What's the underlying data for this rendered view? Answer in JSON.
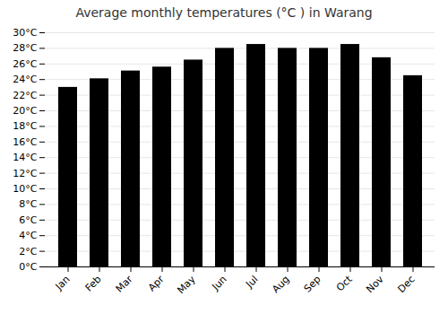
{
  "chart_data": {
    "type": "bar",
    "title": "Average monthly temperatures (°C ) in Warang",
    "categories": [
      "Jan",
      "Feb",
      "Mar",
      "Apr",
      "May",
      "Jun",
      "Jul",
      "Aug",
      "Sep",
      "Oct",
      "Nov",
      "Dec"
    ],
    "values": [
      23.0,
      24.1,
      25.1,
      25.6,
      26.5,
      28.0,
      28.5,
      28.0,
      28.0,
      28.5,
      26.8,
      24.5
    ],
    "ylim": [
      0,
      30
    ],
    "yticks": [
      {
        "value": 0,
        "label": "0°C"
      },
      {
        "value": 2,
        "label": "2°C"
      },
      {
        "value": 4,
        "label": "4°C"
      },
      {
        "value": 6,
        "label": "6°C"
      },
      {
        "value": 8,
        "label": "8°C"
      },
      {
        "value": 10,
        "label": "10°C"
      },
      {
        "value": 12,
        "label": "12°C"
      },
      {
        "value": 14,
        "label": "14°C"
      },
      {
        "value": 16,
        "label": "16°C"
      },
      {
        "value": 18,
        "label": "18°C"
      },
      {
        "value": 20,
        "label": "20°C"
      },
      {
        "value": 22,
        "label": "22°C"
      },
      {
        "value": 24,
        "label": "24°C"
      },
      {
        "value": 26,
        "label": "26°C"
      },
      {
        "value": 28,
        "label": "28°C"
      },
      {
        "value": 30,
        "label": "30°C"
      }
    ],
    "grid": true
  }
}
